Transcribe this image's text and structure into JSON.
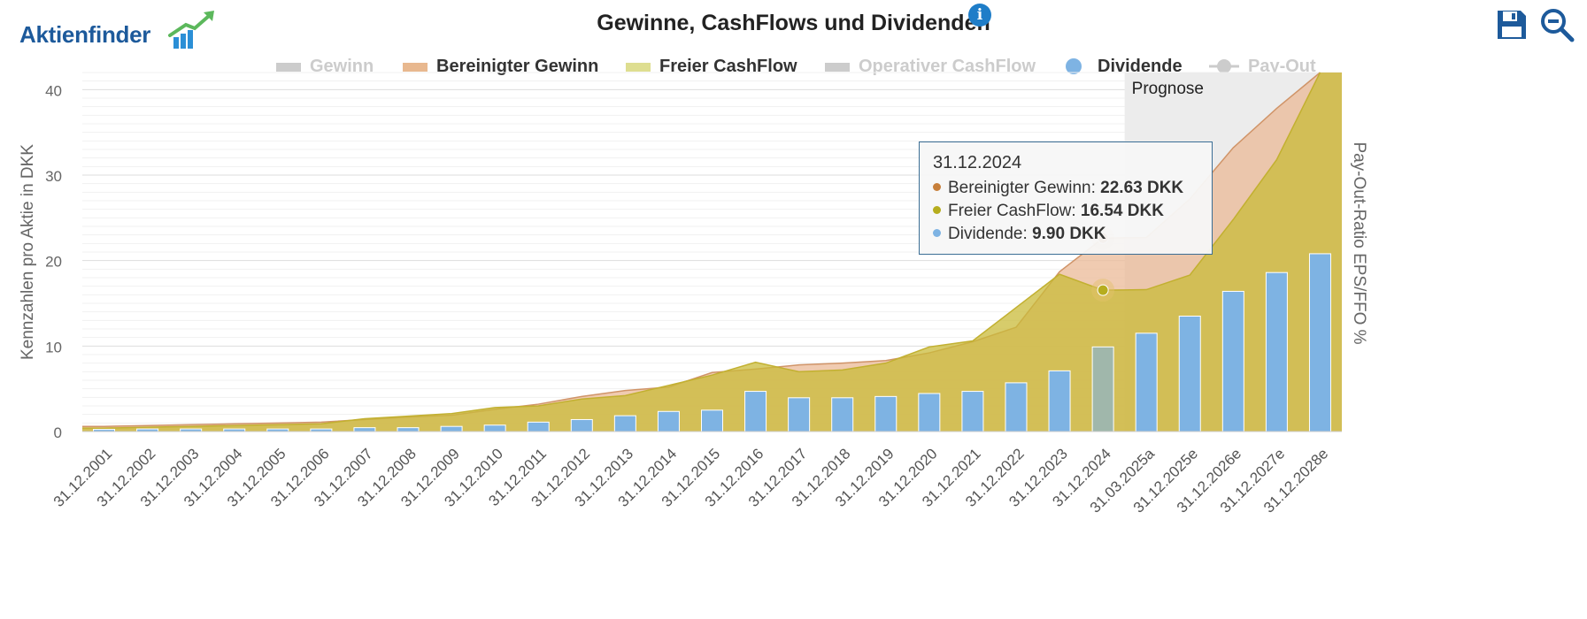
{
  "logo": {
    "text": "Aktienfinder"
  },
  "title": "Gewinne, CashFlows und Dividenden",
  "icons": {
    "info": "info-icon",
    "save": "save-icon",
    "zoom": "zoom-out-icon"
  },
  "legend": [
    {
      "label": "Gewinn",
      "active": false,
      "symbol": "rect",
      "color": "#cccccc"
    },
    {
      "label": "Bereinigter Gewinn",
      "active": true,
      "symbol": "rect",
      "color": "#e8b88f"
    },
    {
      "label": "Freier CashFlow",
      "active": true,
      "symbol": "rect",
      "color": "#dede90"
    },
    {
      "label": "Operativer CashFlow",
      "active": false,
      "symbol": "rect",
      "color": "#cccccc"
    },
    {
      "label": "Dividende",
      "active": true,
      "symbol": "circle",
      "color": "#7eb3e3"
    },
    {
      "label": "Pay-Out",
      "active": false,
      "symbol": "line-dot",
      "color": "#cccccc"
    }
  ],
  "colors": {
    "adjusted_earnings_fill": "#ebb997",
    "adjusted_earnings_line": "#d09468",
    "fcf_fill": "#c9bb3a",
    "fcf_line": "#c2b030",
    "dividend_fill": "#7eb3e3",
    "forecast_band": "#ececec"
  },
  "tooltip": {
    "date": "31.12.2024",
    "rows": [
      {
        "label": "Bereinigter Gewinn: ",
        "value": "22.63 DKK",
        "color": "#c77f3a"
      },
      {
        "label": "Freier CashFlow: ",
        "value": "16.54 DKK",
        "color": "#b6ad1e"
      },
      {
        "label": "Dividende: ",
        "value": "9.90 DKK",
        "color": "#7eb3e3"
      }
    ]
  },
  "chart_data": {
    "type": "bar",
    "title": "Gewinne, CashFlows und Dividenden",
    "ylabel": "Kennzahlen pro Aktie in DKK",
    "ylabel_right": "Pay-Out-Ratio EPS/FFO %",
    "ylim": [
      0,
      42
    ],
    "yticks": [
      0,
      10,
      20,
      30,
      40
    ],
    "grid": true,
    "forecast_label": "Prognose",
    "forecast_start_index": 24,
    "highlight_index": 23,
    "categories": [
      "31.12.2001",
      "31.12.2002",
      "31.12.2003",
      "31.12.2004",
      "31.12.2005",
      "31.12.2006",
      "31.12.2007",
      "31.12.2008",
      "31.12.2009",
      "31.12.2010",
      "31.12.2011",
      "31.12.2012",
      "31.12.2013",
      "31.12.2014",
      "31.12.2015",
      "31.12.2016",
      "31.12.2017",
      "31.12.2018",
      "31.12.2019",
      "31.12.2020",
      "31.12.2021",
      "31.12.2022",
      "31.12.2023",
      "31.12.2024",
      "31.03.2025a",
      "31.12.2025e",
      "31.12.2026e",
      "31.12.2027e",
      "31.12.2028e"
    ],
    "series": [
      {
        "name": "Bereinigter Gewinn",
        "kind": "area",
        "values": [
          0.6,
          0.7,
          0.8,
          0.9,
          1.0,
          1.1,
          1.4,
          1.7,
          1.9,
          2.6,
          3.2,
          4.1,
          4.8,
          5.2,
          6.9,
          7.3,
          7.8,
          8.0,
          8.3,
          9.2,
          10.5,
          12.2,
          18.7,
          22.63,
          22.7,
          27.2,
          33.2,
          37.8,
          42.0
        ]
      },
      {
        "name": "Freier CashFlow",
        "kind": "area",
        "values": [
          0.4,
          0.5,
          0.6,
          0.7,
          0.8,
          0.9,
          1.5,
          1.8,
          2.1,
          2.8,
          3.0,
          3.8,
          4.2,
          5.4,
          6.6,
          8.1,
          7.0,
          7.2,
          8.0,
          9.9,
          10.6,
          14.5,
          18.4,
          16.54,
          16.6,
          18.3,
          24.8,
          31.8,
          42.0
        ]
      },
      {
        "name": "Dividende",
        "kind": "bar",
        "values": [
          0.25,
          0.3,
          0.3,
          0.3,
          0.3,
          0.3,
          0.45,
          0.45,
          0.6,
          0.75,
          1.1,
          1.4,
          1.85,
          2.35,
          2.5,
          4.7,
          3.95,
          3.95,
          4.1,
          4.45,
          4.7,
          5.7,
          7.1,
          9.9,
          11.5,
          13.5,
          16.4,
          18.6,
          20.8
        ]
      }
    ]
  }
}
